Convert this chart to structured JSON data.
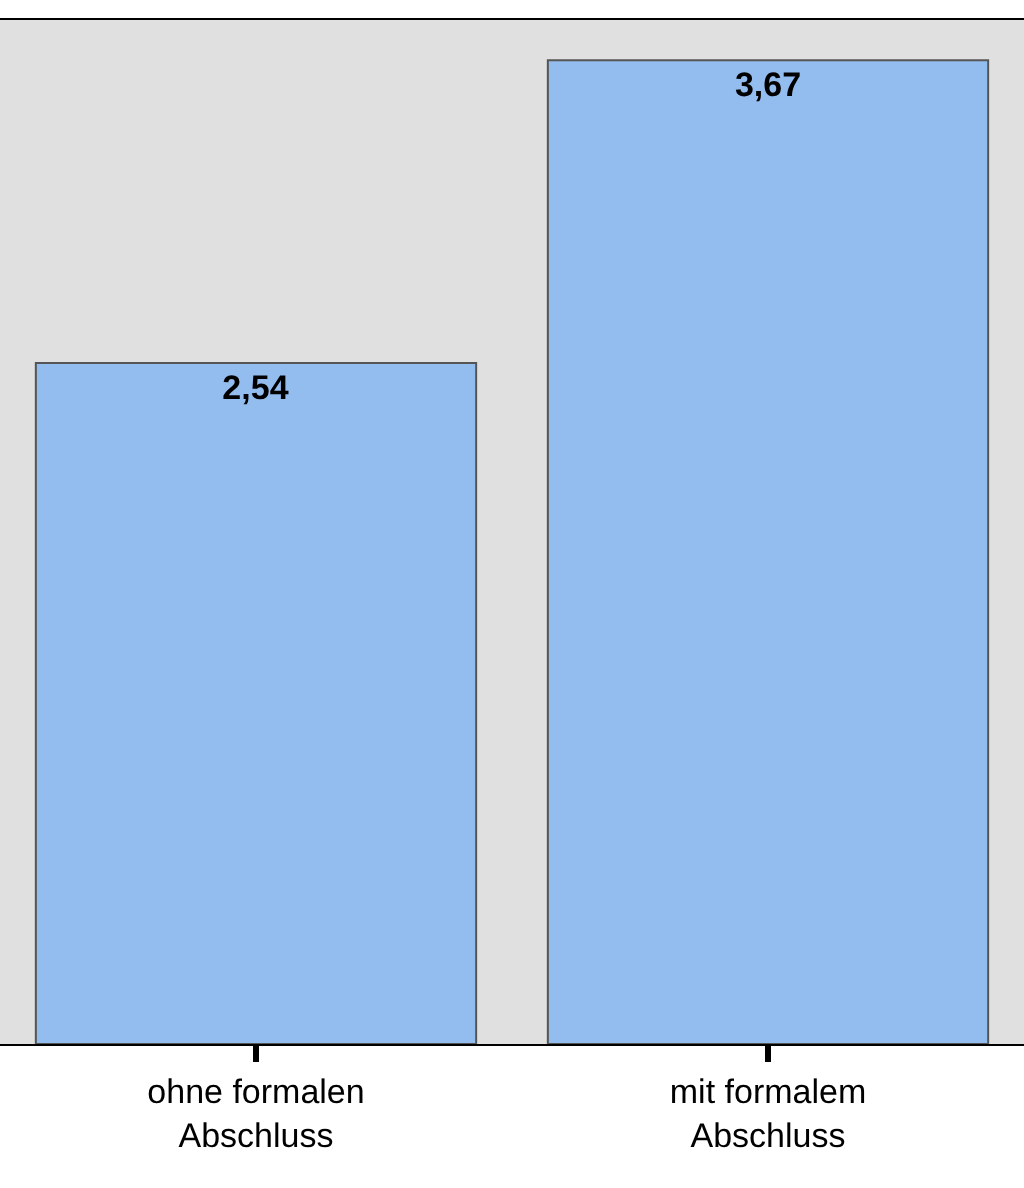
{
  "chart_data": {
    "type": "bar",
    "categories": [
      "ohne formalen\nAbschluss",
      "mit formalem\nAbschluss"
    ],
    "values": [
      2.54,
      3.67
    ],
    "value_labels": [
      "2,54",
      "3,67"
    ],
    "color": "#94bdef",
    "ylim": [
      0,
      3.82
    ],
    "tick_labels": "x",
    "grid": false
  }
}
